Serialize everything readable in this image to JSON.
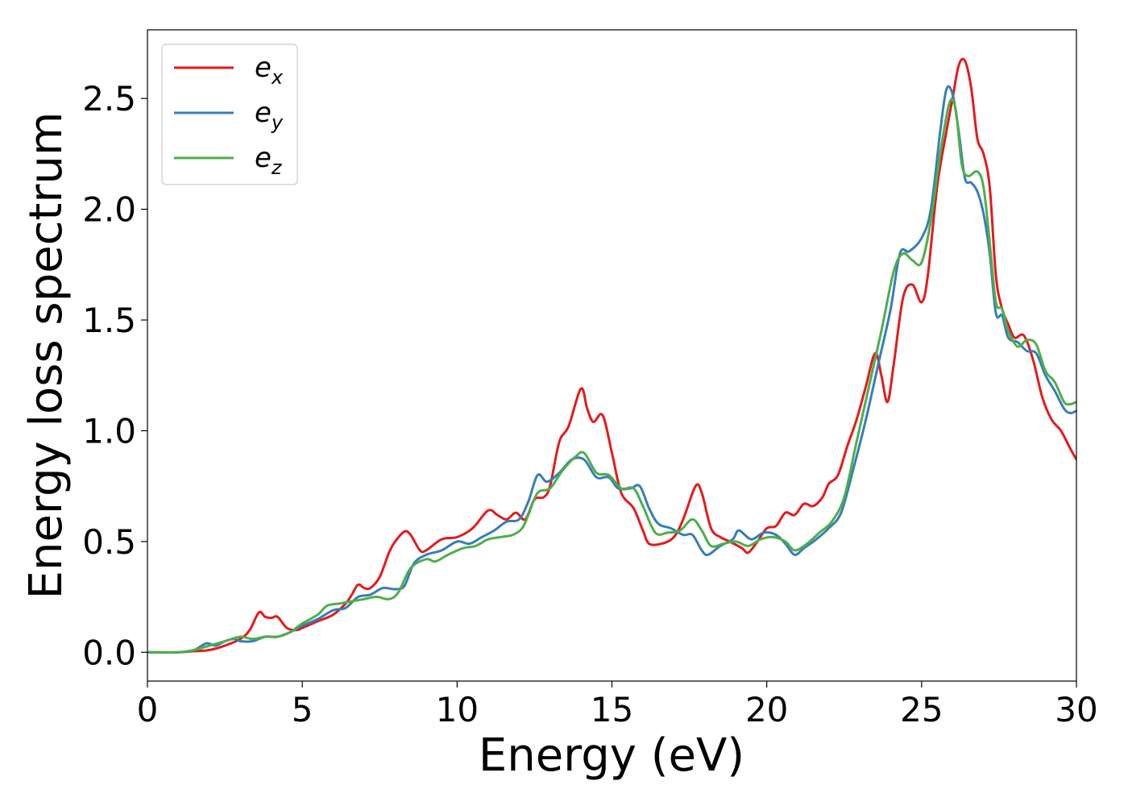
{
  "chart_data": {
    "type": "line",
    "title": "",
    "xlabel": "Energy (eV)",
    "ylabel": "Energy loss spectrum",
    "xlim": [
      0,
      30
    ],
    "ylim": [
      -0.13,
      2.81
    ],
    "xticks": [
      "0",
      "5",
      "10",
      "15",
      "20",
      "25",
      "30"
    ],
    "xtick_values": [
      0,
      5,
      10,
      15,
      20,
      25,
      30
    ],
    "yticks": [
      "0.0",
      "0.5",
      "1.0",
      "1.5",
      "2.0",
      "2.5"
    ],
    "ytick_values": [
      0.0,
      0.5,
      1.0,
      1.5,
      2.0,
      2.5
    ],
    "grid": false,
    "legend_position": "top-left",
    "legend": [
      {
        "base": "e",
        "sub": "x"
      },
      {
        "base": "e",
        "sub": "y"
      },
      {
        "base": "e",
        "sub": "z"
      }
    ],
    "series": [
      {
        "name": "e_x",
        "color": "#e41a1c",
        "points": [
          [
            0,
            0
          ],
          [
            1,
            0
          ],
          [
            1.5,
            0.005
          ],
          [
            2,
            0.01
          ],
          [
            2.5,
            0.03
          ],
          [
            3,
            0.06
          ],
          [
            3.3,
            0.1
          ],
          [
            3.6,
            0.18
          ],
          [
            3.8,
            0.16
          ],
          [
            4,
            0.155
          ],
          [
            4.2,
            0.16
          ],
          [
            4.5,
            0.11
          ],
          [
            4.8,
            0.1
          ],
          [
            5,
            0.11
          ],
          [
            5.5,
            0.14
          ],
          [
            6,
            0.17
          ],
          [
            6.4,
            0.22
          ],
          [
            6.6,
            0.26
          ],
          [
            6.8,
            0.305
          ],
          [
            7,
            0.29
          ],
          [
            7.2,
            0.29
          ],
          [
            7.5,
            0.34
          ],
          [
            7.8,
            0.45
          ],
          [
            8,
            0.5
          ],
          [
            8.3,
            0.545
          ],
          [
            8.5,
            0.53
          ],
          [
            8.8,
            0.46
          ],
          [
            9,
            0.46
          ],
          [
            9.5,
            0.51
          ],
          [
            10,
            0.52
          ],
          [
            10.5,
            0.56
          ],
          [
            11,
            0.64
          ],
          [
            11.3,
            0.62
          ],
          [
            11.6,
            0.6
          ],
          [
            11.9,
            0.63
          ],
          [
            12.2,
            0.6
          ],
          [
            12.5,
            0.69
          ],
          [
            12.8,
            0.7
          ],
          [
            13,
            0.75
          ],
          [
            13.3,
            0.95
          ],
          [
            13.6,
            1.02
          ],
          [
            14,
            1.19
          ],
          [
            14.2,
            1.1
          ],
          [
            14.4,
            1.04
          ],
          [
            14.7,
            1.07
          ],
          [
            15,
            0.9
          ],
          [
            15.3,
            0.72
          ],
          [
            15.7,
            0.65
          ],
          [
            16,
            0.55
          ],
          [
            16.2,
            0.49
          ],
          [
            16.6,
            0.49
          ],
          [
            17,
            0.52
          ],
          [
            17.3,
            0.6
          ],
          [
            17.7,
            0.75
          ],
          [
            17.9,
            0.72
          ],
          [
            18.2,
            0.56
          ],
          [
            18.5,
            0.52
          ],
          [
            18.8,
            0.5
          ],
          [
            19.2,
            0.47
          ],
          [
            19.4,
            0.45
          ],
          [
            19.7,
            0.5
          ],
          [
            20,
            0.56
          ],
          [
            20.3,
            0.57
          ],
          [
            20.6,
            0.63
          ],
          [
            20.9,
            0.62
          ],
          [
            21.2,
            0.67
          ],
          [
            21.5,
            0.66
          ],
          [
            21.8,
            0.7
          ],
          [
            22,
            0.76
          ],
          [
            22.3,
            0.8
          ],
          [
            22.6,
            0.93
          ],
          [
            22.9,
            1.05
          ],
          [
            23.2,
            1.2
          ],
          [
            23.5,
            1.35
          ],
          [
            23.7,
            1.25
          ],
          [
            23.9,
            1.13
          ],
          [
            24.1,
            1.3
          ],
          [
            24.4,
            1.6
          ],
          [
            24.7,
            1.66
          ],
          [
            25,
            1.58
          ],
          [
            25.2,
            1.7
          ],
          [
            25.5,
            2.1
          ],
          [
            25.8,
            2.35
          ],
          [
            26,
            2.5
          ],
          [
            26.2,
            2.65
          ],
          [
            26.4,
            2.67
          ],
          [
            26.6,
            2.55
          ],
          [
            26.8,
            2.32
          ],
          [
            27,
            2.25
          ],
          [
            27.2,
            2.1
          ],
          [
            27.4,
            1.7
          ],
          [
            27.6,
            1.55
          ],
          [
            27.8,
            1.48
          ],
          [
            28,
            1.42
          ],
          [
            28.3,
            1.43
          ],
          [
            28.6,
            1.32
          ],
          [
            28.9,
            1.15
          ],
          [
            29.2,
            1.05
          ],
          [
            29.5,
            1.0
          ],
          [
            29.8,
            0.92
          ],
          [
            30,
            0.87
          ]
        ]
      },
      {
        "name": "e_y",
        "color": "#377eb8",
        "points": [
          [
            0,
            0
          ],
          [
            1,
            0
          ],
          [
            1.5,
            0.01
          ],
          [
            1.9,
            0.04
          ],
          [
            2.2,
            0.03
          ],
          [
            2.5,
            0.05
          ],
          [
            2.8,
            0.06
          ],
          [
            3,
            0.05
          ],
          [
            3.4,
            0.05
          ],
          [
            3.8,
            0.07
          ],
          [
            4.2,
            0.07
          ],
          [
            4.6,
            0.09
          ],
          [
            5,
            0.12
          ],
          [
            5.5,
            0.15
          ],
          [
            6,
            0.19
          ],
          [
            6.4,
            0.2
          ],
          [
            6.8,
            0.25
          ],
          [
            7.2,
            0.26
          ],
          [
            7.6,
            0.29
          ],
          [
            8,
            0.285
          ],
          [
            8.3,
            0.3
          ],
          [
            8.6,
            0.4
          ],
          [
            9,
            0.44
          ],
          [
            9.5,
            0.46
          ],
          [
            10,
            0.5
          ],
          [
            10.4,
            0.49
          ],
          [
            10.8,
            0.52
          ],
          [
            11.2,
            0.55
          ],
          [
            11.6,
            0.59
          ],
          [
            12,
            0.6
          ],
          [
            12.3,
            0.68
          ],
          [
            12.6,
            0.8
          ],
          [
            12.9,
            0.77
          ],
          [
            13.3,
            0.81
          ],
          [
            13.7,
            0.87
          ],
          [
            14.1,
            0.87
          ],
          [
            14.5,
            0.79
          ],
          [
            14.9,
            0.79
          ],
          [
            15.2,
            0.74
          ],
          [
            15.6,
            0.74
          ],
          [
            15.9,
            0.75
          ],
          [
            16.2,
            0.65
          ],
          [
            16.5,
            0.58
          ],
          [
            16.9,
            0.56
          ],
          [
            17.3,
            0.53
          ],
          [
            17.6,
            0.53
          ],
          [
            17.9,
            0.46
          ],
          [
            18.1,
            0.44
          ],
          [
            18.5,
            0.48
          ],
          [
            18.9,
            0.51
          ],
          [
            19.1,
            0.55
          ],
          [
            19.5,
            0.51
          ],
          [
            19.9,
            0.54
          ],
          [
            20.3,
            0.53
          ],
          [
            20.6,
            0.49
          ],
          [
            20.9,
            0.44
          ],
          [
            21.2,
            0.47
          ],
          [
            21.6,
            0.51
          ],
          [
            22,
            0.56
          ],
          [
            22.4,
            0.63
          ],
          [
            22.8,
            0.83
          ],
          [
            23.2,
            1.05
          ],
          [
            23.6,
            1.3
          ],
          [
            24,
            1.55
          ],
          [
            24.3,
            1.8
          ],
          [
            24.6,
            1.81
          ],
          [
            25,
            1.87
          ],
          [
            25.3,
            2.0
          ],
          [
            25.6,
            2.35
          ],
          [
            25.8,
            2.54
          ],
          [
            26,
            2.52
          ],
          [
            26.2,
            2.35
          ],
          [
            26.4,
            2.14
          ],
          [
            26.6,
            2.12
          ],
          [
            26.8,
            2.08
          ],
          [
            27,
            1.98
          ],
          [
            27.2,
            1.8
          ],
          [
            27.4,
            1.53
          ],
          [
            27.6,
            1.52
          ],
          [
            27.8,
            1.42
          ],
          [
            28.1,
            1.4
          ],
          [
            28.4,
            1.36
          ],
          [
            28.7,
            1.35
          ],
          [
            29,
            1.25
          ],
          [
            29.3,
            1.18
          ],
          [
            29.6,
            1.1
          ],
          [
            29.8,
            1.08
          ],
          [
            30,
            1.09
          ]
        ]
      },
      {
        "name": "e_z",
        "color": "#4daf4a",
        "points": [
          [
            0,
            0
          ],
          [
            1,
            0
          ],
          [
            1.5,
            0.01
          ],
          [
            2,
            0.03
          ],
          [
            2.5,
            0.05
          ],
          [
            3,
            0.07
          ],
          [
            3.4,
            0.06
          ],
          [
            3.8,
            0.07
          ],
          [
            4.2,
            0.07
          ],
          [
            4.6,
            0.09
          ],
          [
            5,
            0.13
          ],
          [
            5.5,
            0.17
          ],
          [
            5.8,
            0.21
          ],
          [
            6.2,
            0.22
          ],
          [
            6.6,
            0.23
          ],
          [
            7,
            0.24
          ],
          [
            7.4,
            0.25
          ],
          [
            7.8,
            0.24
          ],
          [
            8.1,
            0.27
          ],
          [
            8.5,
            0.38
          ],
          [
            9,
            0.42
          ],
          [
            9.3,
            0.41
          ],
          [
            9.7,
            0.44
          ],
          [
            10.2,
            0.47
          ],
          [
            10.6,
            0.48
          ],
          [
            11,
            0.51
          ],
          [
            11.4,
            0.52
          ],
          [
            11.8,
            0.53
          ],
          [
            12.1,
            0.56
          ],
          [
            12.3,
            0.62
          ],
          [
            12.6,
            0.72
          ],
          [
            13,
            0.74
          ],
          [
            13.4,
            0.82
          ],
          [
            13.8,
            0.88
          ],
          [
            14.1,
            0.9
          ],
          [
            14.5,
            0.81
          ],
          [
            14.9,
            0.8
          ],
          [
            15.3,
            0.74
          ],
          [
            15.7,
            0.74
          ],
          [
            16,
            0.66
          ],
          [
            16.4,
            0.54
          ],
          [
            16.8,
            0.54
          ],
          [
            17.2,
            0.55
          ],
          [
            17.6,
            0.6
          ],
          [
            17.9,
            0.55
          ],
          [
            18.2,
            0.48
          ],
          [
            18.6,
            0.49
          ],
          [
            19,
            0.5
          ],
          [
            19.4,
            0.48
          ],
          [
            19.8,
            0.51
          ],
          [
            20.2,
            0.52
          ],
          [
            20.6,
            0.5
          ],
          [
            20.9,
            0.46
          ],
          [
            21.3,
            0.49
          ],
          [
            21.7,
            0.54
          ],
          [
            22.1,
            0.59
          ],
          [
            22.5,
            0.7
          ],
          [
            22.9,
            0.95
          ],
          [
            23.3,
            1.2
          ],
          [
            23.7,
            1.45
          ],
          [
            24.1,
            1.72
          ],
          [
            24.4,
            1.8
          ],
          [
            24.7,
            1.77
          ],
          [
            25,
            1.76
          ],
          [
            25.3,
            1.95
          ],
          [
            25.6,
            2.25
          ],
          [
            25.9,
            2.48
          ],
          [
            26.1,
            2.45
          ],
          [
            26.3,
            2.2
          ],
          [
            26.5,
            2.15
          ],
          [
            26.8,
            2.17
          ],
          [
            27,
            2.1
          ],
          [
            27.2,
            1.85
          ],
          [
            27.4,
            1.58
          ],
          [
            27.6,
            1.55
          ],
          [
            27.8,
            1.45
          ],
          [
            28.1,
            1.38
          ],
          [
            28.4,
            1.41
          ],
          [
            28.7,
            1.39
          ],
          [
            29,
            1.27
          ],
          [
            29.3,
            1.22
          ],
          [
            29.6,
            1.13
          ],
          [
            29.8,
            1.12
          ],
          [
            30,
            1.13
          ]
        ]
      }
    ]
  }
}
